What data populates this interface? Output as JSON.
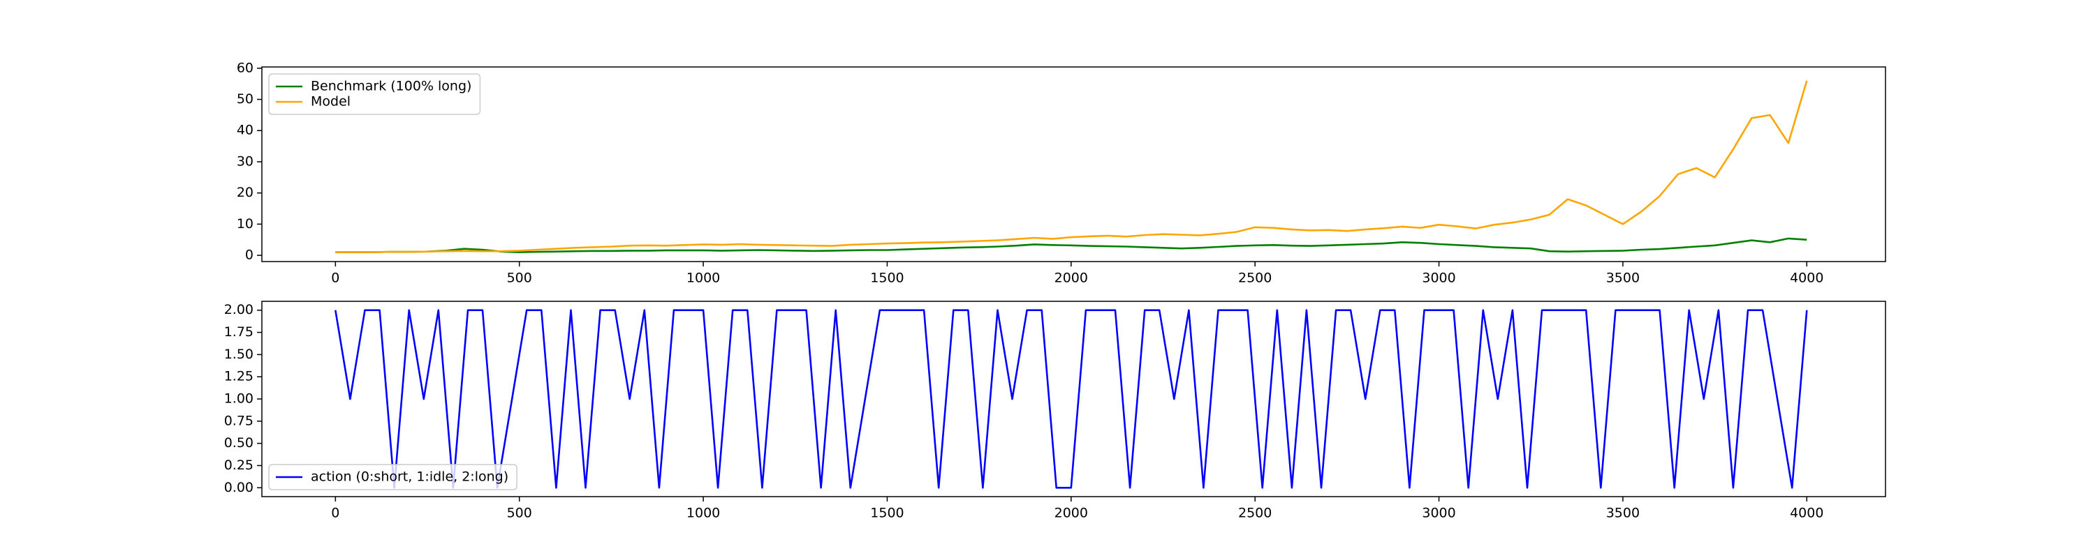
{
  "chart_data": [
    {
      "type": "line",
      "x": [
        0,
        50,
        100,
        150,
        200,
        250,
        300,
        350,
        400,
        450,
        500,
        550,
        600,
        650,
        700,
        750,
        800,
        850,
        900,
        950,
        1000,
        1050,
        1100,
        1150,
        1200,
        1250,
        1300,
        1350,
        1400,
        1450,
        1500,
        1550,
        1600,
        1650,
        1700,
        1750,
        1800,
        1850,
        1900,
        1950,
        2000,
        2050,
        2100,
        2150,
        2200,
        2250,
        2300,
        2350,
        2400,
        2450,
        2500,
        2550,
        2600,
        2650,
        2700,
        2750,
        2800,
        2850,
        2900,
        2950,
        3000,
        3050,
        3100,
        3150,
        3200,
        3250,
        3300,
        3350,
        3400,
        3450,
        3500,
        3550,
        3600,
        3650,
        3700,
        3750,
        3800,
        3850,
        3900,
        3950,
        4000
      ],
      "series": [
        {
          "name": "Benchmark (100% long)",
          "color": "#008000",
          "values": [
            1,
            1,
            1,
            1.1,
            1.1,
            1.2,
            1.5,
            2.1,
            1.8,
            1.2,
            1.0,
            1.1,
            1.2,
            1.3,
            1.4,
            1.4,
            1.5,
            1.5,
            1.6,
            1.6,
            1.6,
            1.5,
            1.6,
            1.7,
            1.6,
            1.5,
            1.4,
            1.5,
            1.6,
            1.7,
            1.7,
            1.9,
            2.1,
            2.3,
            2.5,
            2.6,
            2.8,
            3.1,
            3.5,
            3.3,
            3.2,
            3.0,
            2.9,
            2.8,
            2.6,
            2.4,
            2.2,
            2.4,
            2.7,
            3.0,
            3.2,
            3.3,
            3.1,
            3.0,
            3.2,
            3.4,
            3.6,
            3.8,
            4.2,
            4.0,
            3.6,
            3.3,
            3.0,
            2.6,
            2.4,
            2.2,
            1.3,
            1.2,
            1.3,
            1.4,
            1.5,
            1.8,
            2.0,
            2.4,
            2.8,
            3.2,
            4.0,
            4.8,
            4.2,
            5.4,
            5
          ]
        },
        {
          "name": "Model",
          "color": "#ffa500",
          "values": [
            1,
            1,
            1,
            1.1,
            1.1,
            1.2,
            1.3,
            1.4,
            1.3,
            1.3,
            1.5,
            1.8,
            2.1,
            2.4,
            2.6,
            2.8,
            3.1,
            3.2,
            3.1,
            3.3,
            3.5,
            3.4,
            3.6,
            3.4,
            3.3,
            3.2,
            3.1,
            3.0,
            3.4,
            3.6,
            3.8,
            3.9,
            4.1,
            4.2,
            4.4,
            4.6,
            4.8,
            5.2,
            5.6,
            5.3,
            5.8,
            6.1,
            6.3,
            6.0,
            6.5,
            6.8,
            6.6,
            6.4,
            6.9,
            7.5,
            9.0,
            8.8,
            8.3,
            8.0,
            8.1,
            7.8,
            8.3,
            8.7,
            9.2,
            8.8,
            9.8,
            9.3,
            8.6,
            9.8,
            10.5,
            11.5,
            13,
            18,
            16,
            13,
            10,
            14,
            19,
            26,
            28,
            25,
            34,
            44,
            45,
            36,
            56
          ]
        }
      ],
      "xlim": [
        -200,
        4214
      ],
      "ylim": [
        -2,
        60.4
      ],
      "xticks": [
        0,
        500,
        1000,
        1500,
        2000,
        2500,
        3000,
        3500,
        4000
      ],
      "yticks": [
        0,
        10,
        20,
        30,
        40,
        50,
        60
      ],
      "legend": "upper left"
    },
    {
      "type": "line",
      "x": [
        0,
        40,
        80,
        120,
        160,
        200,
        240,
        280,
        320,
        360,
        400,
        440,
        480,
        520,
        560,
        600,
        640,
        680,
        720,
        760,
        800,
        840,
        880,
        920,
        960,
        1000,
        1040,
        1080,
        1120,
        1160,
        1200,
        1240,
        1280,
        1320,
        1360,
        1400,
        1440,
        1480,
        1520,
        1560,
        1600,
        1640,
        1680,
        1720,
        1760,
        1800,
        1840,
        1880,
        1920,
        1960,
        2000,
        2040,
        2080,
        2120,
        2160,
        2200,
        2240,
        2280,
        2320,
        2360,
        2400,
        2440,
        2480,
        2520,
        2560,
        2600,
        2640,
        2680,
        2720,
        2760,
        2800,
        2840,
        2880,
        2920,
        2960,
        3000,
        3040,
        3080,
        3120,
        3160,
        3200,
        3240,
        3280,
        3320,
        3360,
        3400,
        3440,
        3480,
        3520,
        3560,
        3600,
        3640,
        3680,
        3720,
        3760,
        3800,
        3840,
        3880,
        3920,
        3960,
        4000
      ],
      "series": [
        {
          "name": "action (0:short, 1:idle, 2:long)",
          "color": "#0000ff",
          "values": [
            2,
            1,
            2,
            2,
            0,
            2,
            1,
            2,
            0,
            2,
            2,
            0,
            1,
            2,
            2,
            0,
            2,
            0,
            2,
            2,
            1,
            2,
            0,
            2,
            2,
            2,
            0,
            2,
            2,
            0,
            2,
            2,
            2,
            0,
            2,
            0,
            1,
            2,
            2,
            2,
            2,
            0,
            2,
            2,
            0,
            2,
            1,
            2,
            2,
            0,
            0,
            2,
            2,
            2,
            0,
            2,
            2,
            1,
            2,
            0,
            2,
            2,
            2,
            0,
            2,
            0,
            2,
            0,
            2,
            2,
            1,
            2,
            2,
            0,
            2,
            2,
            2,
            0,
            2,
            1,
            2,
            0,
            2,
            2,
            2,
            2,
            0,
            2,
            2,
            2,
            2,
            0,
            2,
            1,
            2,
            0,
            2,
            2,
            1,
            0,
            2
          ]
        }
      ],
      "xlim": [
        -200,
        4214
      ],
      "ylim": [
        -0.1,
        2.1
      ],
      "xticks": [
        0,
        500,
        1000,
        1500,
        2000,
        2500,
        3000,
        3500,
        4000
      ],
      "yticks": [
        {
          "value": 0,
          "label": "0.00"
        },
        {
          "value": 0.25,
          "label": "0.25"
        },
        {
          "value": 0.5,
          "label": "0.50"
        },
        {
          "value": 0.75,
          "label": "0.75"
        },
        {
          "value": 1,
          "label": "1.00"
        },
        {
          "value": 1.25,
          "label": "1.25"
        },
        {
          "value": 1.5,
          "label": "1.50"
        },
        {
          "value": 1.75,
          "label": "1.75"
        },
        {
          "value": 2,
          "label": "2.00"
        }
      ],
      "legend": "lower left"
    }
  ]
}
